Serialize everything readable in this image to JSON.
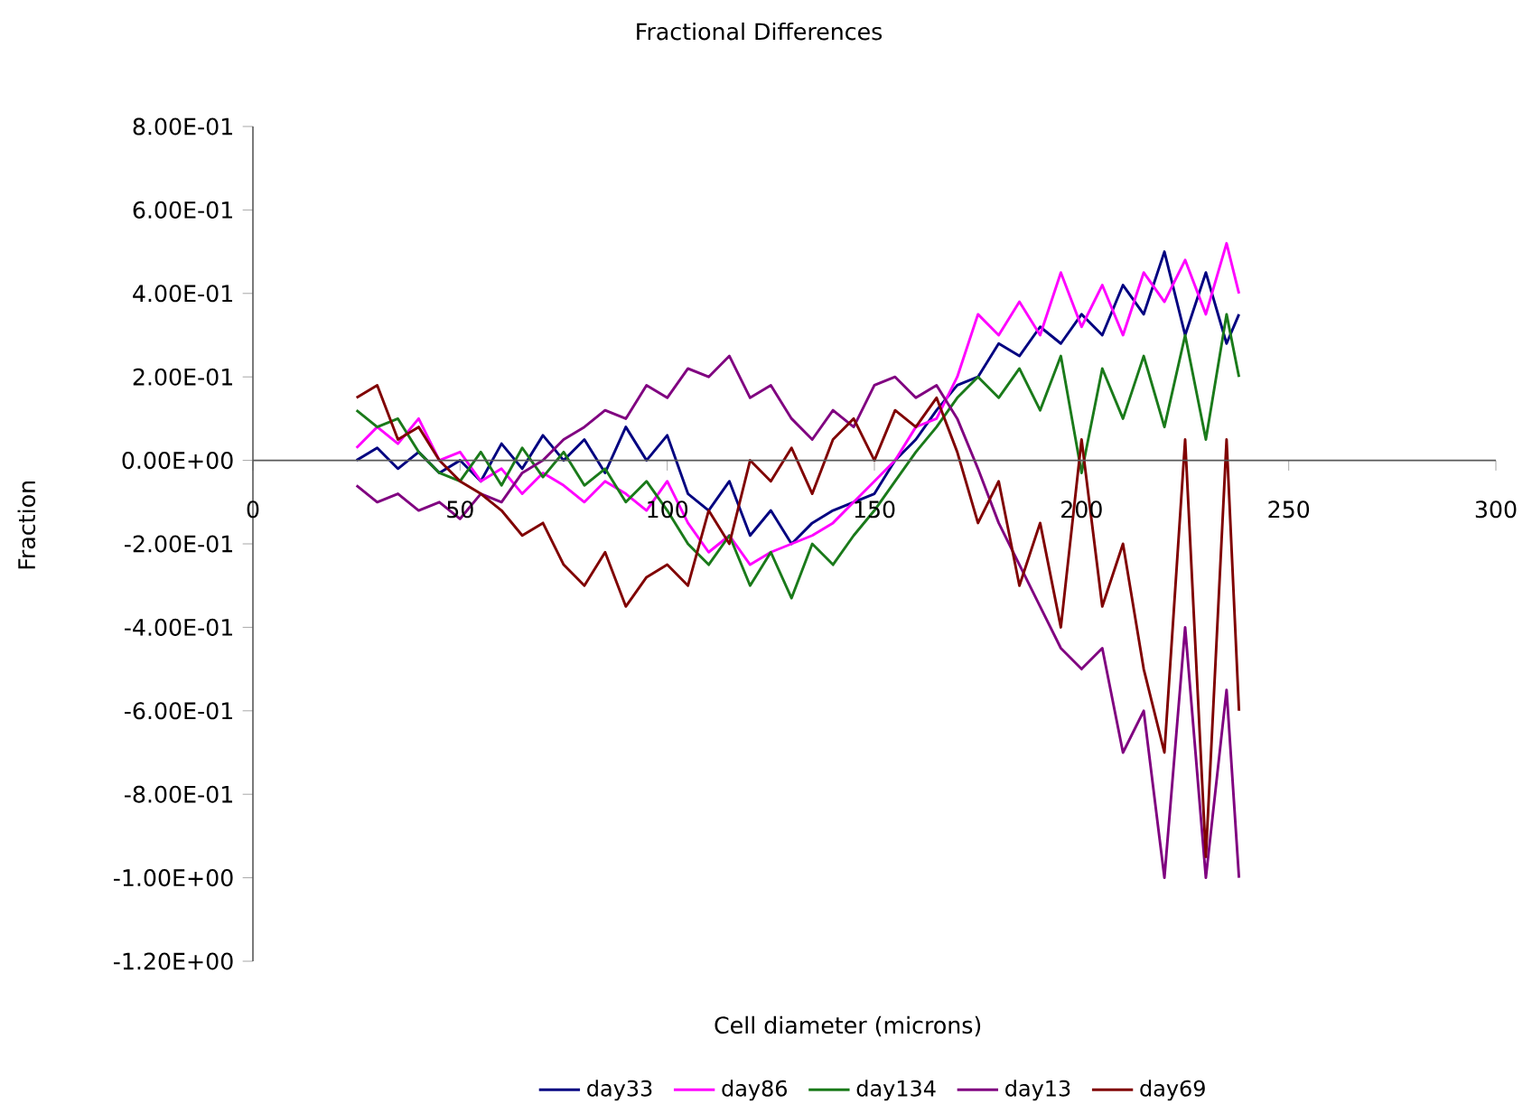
{
  "chart_data": {
    "type": "line",
    "title": "Fractional Differences",
    "xlabel": "Cell diameter (microns)",
    "ylabel": "Fraction",
    "x": [
      25,
      30,
      35,
      40,
      45,
      50,
      55,
      60,
      65,
      70,
      75,
      80,
      85,
      90,
      95,
      100,
      105,
      110,
      115,
      120,
      125,
      130,
      135,
      140,
      145,
      150,
      155,
      160,
      165,
      170,
      175,
      180,
      185,
      190,
      195,
      200,
      205,
      210,
      215,
      220,
      225,
      230,
      235,
      238
    ],
    "series": [
      {
        "name": "day33",
        "color": "#000080",
        "values": [
          0.0,
          0.03,
          -0.02,
          0.02,
          -0.03,
          0.0,
          -0.05,
          0.04,
          -0.02,
          0.06,
          0.0,
          0.05,
          -0.03,
          0.08,
          0.0,
          0.06,
          -0.08,
          -0.12,
          -0.05,
          -0.18,
          -0.12,
          -0.2,
          -0.15,
          -0.12,
          -0.1,
          -0.08,
          0.0,
          0.05,
          0.12,
          0.18,
          0.2,
          0.28,
          0.25,
          0.32,
          0.28,
          0.35,
          0.3,
          0.42,
          0.35,
          0.5,
          0.3,
          0.45,
          0.28,
          0.35
        ]
      },
      {
        "name": "day86",
        "color": "#ff00ff",
        "values": [
          0.03,
          0.08,
          0.04,
          0.1,
          0.0,
          0.02,
          -0.05,
          -0.02,
          -0.08,
          -0.03,
          -0.06,
          -0.1,
          -0.05,
          -0.08,
          -0.12,
          -0.05,
          -0.15,
          -0.22,
          -0.18,
          -0.25,
          -0.22,
          -0.2,
          -0.18,
          -0.15,
          -0.1,
          -0.05,
          0.0,
          0.08,
          0.1,
          0.2,
          0.35,
          0.3,
          0.38,
          0.3,
          0.45,
          0.32,
          0.42,
          0.3,
          0.45,
          0.38,
          0.48,
          0.35,
          0.52,
          0.4
        ]
      },
      {
        "name": "day134",
        "color": "#1a7a1a",
        "values": [
          0.12,
          0.08,
          0.1,
          0.02,
          -0.03,
          -0.05,
          0.02,
          -0.06,
          0.03,
          -0.04,
          0.02,
          -0.06,
          -0.02,
          -0.1,
          -0.05,
          -0.12,
          -0.2,
          -0.25,
          -0.18,
          -0.3,
          -0.22,
          -0.33,
          -0.2,
          -0.25,
          -0.18,
          -0.12,
          -0.05,
          0.02,
          0.08,
          0.15,
          0.2,
          0.15,
          0.22,
          0.12,
          0.25,
          -0.03,
          0.22,
          0.1,
          0.25,
          0.08,
          0.3,
          0.05,
          0.35,
          0.2
        ]
      },
      {
        "name": "day13",
        "color": "#800080",
        "values": [
          -0.06,
          -0.1,
          -0.08,
          -0.12,
          -0.1,
          -0.14,
          -0.08,
          -0.1,
          -0.03,
          0.0,
          0.05,
          0.08,
          0.12,
          0.1,
          0.18,
          0.15,
          0.22,
          0.2,
          0.25,
          0.15,
          0.18,
          0.1,
          0.05,
          0.12,
          0.08,
          0.18,
          0.2,
          0.15,
          0.18,
          0.1,
          -0.02,
          -0.15,
          -0.25,
          -0.35,
          -0.45,
          -0.5,
          -0.45,
          -0.7,
          -0.6,
          -1.0,
          -0.4,
          -1.0,
          -0.55,
          -1.0
        ]
      },
      {
        "name": "day69",
        "color": "#800000",
        "values": [
          0.15,
          0.18,
          0.05,
          0.08,
          0.0,
          -0.05,
          -0.08,
          -0.12,
          -0.18,
          -0.15,
          -0.25,
          -0.3,
          -0.22,
          -0.35,
          -0.28,
          -0.25,
          -0.3,
          -0.12,
          -0.2,
          0.0,
          -0.05,
          0.03,
          -0.08,
          0.05,
          0.1,
          0.0,
          0.12,
          0.08,
          0.15,
          0.02,
          -0.15,
          -0.05,
          -0.3,
          -0.15,
          -0.4,
          0.05,
          -0.35,
          -0.2,
          -0.5,
          -0.7,
          0.05,
          -0.95,
          0.05,
          -0.6
        ]
      }
    ],
    "xlim": [
      0,
      300
    ],
    "xticks": [
      0,
      50,
      100,
      150,
      200,
      250,
      300
    ],
    "ylim": [
      -1.2,
      0.8
    ],
    "yticks": [
      {
        "value": -1.2,
        "label": "-1.20E+00"
      },
      {
        "value": -1.0,
        "label": "-1.00E+00"
      },
      {
        "value": -0.8,
        "label": "-8.00E-01"
      },
      {
        "value": -0.6,
        "label": "-6.00E-01"
      },
      {
        "value": -0.4,
        "label": "-4.00E-01"
      },
      {
        "value": -0.2,
        "label": "-2.00E-01"
      },
      {
        "value": 0,
        "label": "0.00E+00"
      },
      {
        "value": 0.2,
        "label": "2.00E-01"
      },
      {
        "value": 0.4,
        "label": "4.00E-01"
      },
      {
        "value": 0.6,
        "label": "6.00E-01"
      },
      {
        "value": 0.8,
        "label": "8.00E-01"
      }
    ],
    "grid": false,
    "legend": "bottom",
    "marker": "none",
    "line_style": "solid"
  }
}
